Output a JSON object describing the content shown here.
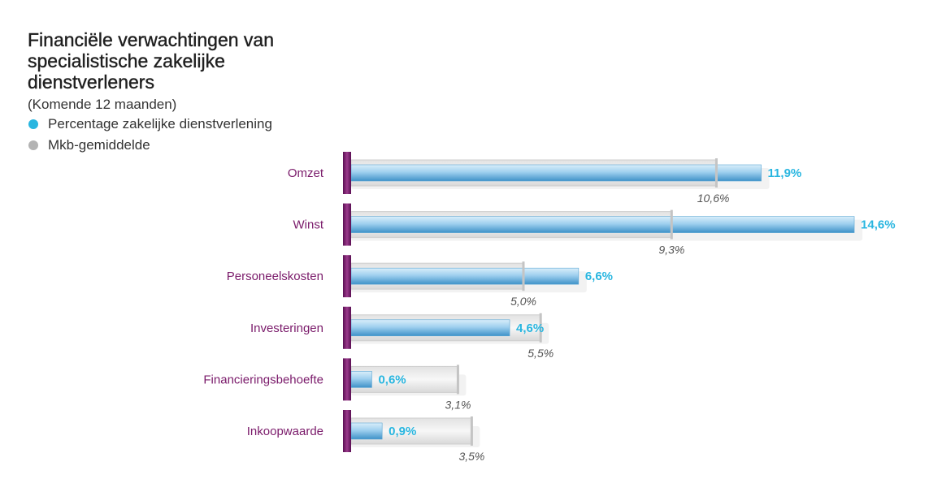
{
  "colors": {
    "primary": "#29b6e0",
    "average": "#b3b3b3",
    "category_label": "#7a1a6a",
    "accent_bar": "#7b1d6f"
  },
  "legend": {
    "items": [
      {
        "label": "Percentage zakelijke dienstverlening",
        "color": "#29b6e0"
      },
      {
        "label": "Mkb-gemiddelde",
        "color": "#b3b3b3"
      }
    ]
  },
  "chart_data": {
    "type": "bar",
    "orientation": "horizontal",
    "title": "Financiële verwachtingen van specialistische zakelijke dienstverleners",
    "subtitle": "(Komende 12 maanden)",
    "xlabel": "",
    "ylabel": "",
    "xlim": [
      0,
      14.6
    ],
    "grid": false,
    "legend_position": "top-left",
    "categories": [
      "Omzet",
      "Winst",
      "Personeelskosten",
      "Investeringen",
      "Financieringsbehoefte",
      "Inkoopwaarde"
    ],
    "series": [
      {
        "name": "Percentage zakelijke dienstverlening",
        "values": [
          11.9,
          14.6,
          6.6,
          4.6,
          0.6,
          0.9
        ],
        "labels": [
          "11,9%",
          "14,6%",
          "6,6%",
          "4,6%",
          "0,6%",
          "0,9%"
        ]
      },
      {
        "name": "Mkb-gemiddelde",
        "values": [
          10.6,
          9.3,
          5.0,
          5.5,
          3.1,
          3.5
        ],
        "labels": [
          "10,6%",
          "9,3%",
          "5,0%",
          "5,5%",
          "3,1%",
          "3,5%"
        ]
      }
    ]
  }
}
